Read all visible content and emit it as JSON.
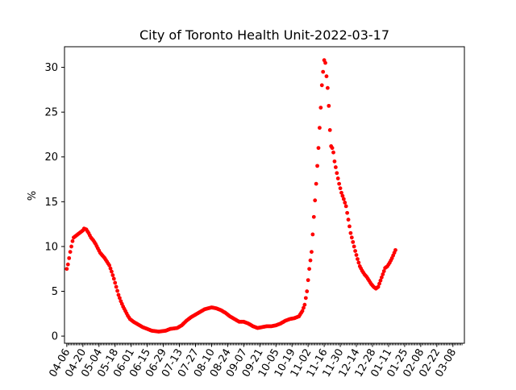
{
  "chart_data": {
    "type": "scatter",
    "title": "City of Toronto Health Unit-2022-03-17",
    "xlabel": "",
    "ylabel": "%",
    "x_start_date": "2021-04-06",
    "xlim_days": [
      -2,
      346
    ],
    "ylim": [
      -0.8,
      32.3
    ],
    "yticks": [
      0,
      5,
      10,
      15,
      20,
      25,
      30
    ],
    "xtick_labels": [
      "04-06",
      "04-20",
      "05-04",
      "05-18",
      "06-01",
      "06-15",
      "06-29",
      "07-13",
      "07-27",
      "08-10",
      "08-24",
      "09-07",
      "09-21",
      "10-05",
      "10-19",
      "11-02",
      "11-16",
      "11-30",
      "12-14",
      "12-28",
      "01-11",
      "01-25",
      "02-08",
      "02-22",
      "03-08"
    ],
    "marker_color": "#ff0000",
    "series": [
      {
        "name": "",
        "anchors": [
          [
            0,
            7.5
          ],
          [
            1,
            8.0
          ],
          [
            2,
            8.7
          ],
          [
            3,
            9.4
          ],
          [
            4,
            10.0
          ],
          [
            5,
            10.6
          ],
          [
            6,
            11.0
          ],
          [
            8,
            11.2
          ],
          [
            10,
            11.4
          ],
          [
            12,
            11.6
          ],
          [
            14,
            11.8
          ],
          [
            15,
            12.0
          ],
          [
            17,
            11.9
          ],
          [
            19,
            11.5
          ],
          [
            21,
            11.0
          ],
          [
            23,
            10.7
          ],
          [
            25,
            10.3
          ],
          [
            27,
            9.8
          ],
          [
            29,
            9.3
          ],
          [
            31,
            9.0
          ],
          [
            33,
            8.7
          ],
          [
            35,
            8.3
          ],
          [
            37,
            7.9
          ],
          [
            39,
            7.2
          ],
          [
            41,
            6.4
          ],
          [
            43,
            5.5
          ],
          [
            45,
            4.6
          ],
          [
            47,
            3.9
          ],
          [
            49,
            3.3
          ],
          [
            51,
            2.8
          ],
          [
            53,
            2.3
          ],
          [
            55,
            1.9
          ],
          [
            58,
            1.6
          ],
          [
            62,
            1.3
          ],
          [
            66,
            1.0
          ],
          [
            70,
            0.8
          ],
          [
            74,
            0.6
          ],
          [
            80,
            0.5
          ],
          [
            86,
            0.6
          ],
          [
            90,
            0.8
          ],
          [
            96,
            0.9
          ],
          [
            100,
            1.2
          ],
          [
            104,
            1.7
          ],
          [
            108,
            2.1
          ],
          [
            112,
            2.4
          ],
          [
            116,
            2.7
          ],
          [
            120,
            3.0
          ],
          [
            126,
            3.2
          ],
          [
            130,
            3.1
          ],
          [
            134,
            2.9
          ],
          [
            138,
            2.6
          ],
          [
            142,
            2.2
          ],
          [
            146,
            1.9
          ],
          [
            150,
            1.6
          ],
          [
            154,
            1.6
          ],
          [
            158,
            1.4
          ],
          [
            162,
            1.1
          ],
          [
            166,
            0.9
          ],
          [
            170,
            1.0
          ],
          [
            174,
            1.1
          ],
          [
            178,
            1.1
          ],
          [
            182,
            1.2
          ],
          [
            186,
            1.4
          ],
          [
            190,
            1.7
          ],
          [
            194,
            1.9
          ],
          [
            198,
            2.0
          ],
          [
            202,
            2.2
          ],
          [
            205,
            2.8
          ],
          [
            207,
            3.5
          ],
          [
            209,
            5.0
          ],
          [
            211,
            7.5
          ],
          [
            213,
            9.4
          ],
          [
            215,
            13.3
          ],
          [
            217,
            17.0
          ],
          [
            219,
            21.0
          ],
          [
            221,
            25.5
          ],
          [
            222,
            28.0
          ],
          [
            223,
            29.5
          ],
          [
            224,
            30.8
          ],
          [
            225,
            30.5
          ],
          [
            226,
            29.0
          ],
          [
            227,
            27.7
          ],
          [
            228,
            25.7
          ],
          [
            229,
            23.0
          ],
          [
            230,
            21.2
          ],
          [
            231,
            21.0
          ],
          [
            232,
            20.5
          ],
          [
            233,
            19.5
          ],
          [
            235,
            18.2
          ],
          [
            237,
            17.0
          ],
          [
            239,
            16.0
          ],
          [
            241,
            15.3
          ],
          [
            243,
            14.5
          ],
          [
            245,
            13.0
          ],
          [
            247,
            11.5
          ],
          [
            249,
            10.5
          ],
          [
            251,
            9.5
          ],
          [
            253,
            8.6
          ],
          [
            255,
            7.8
          ],
          [
            257,
            7.3
          ],
          [
            259,
            6.9
          ],
          [
            261,
            6.6
          ],
          [
            263,
            6.2
          ],
          [
            265,
            5.8
          ],
          [
            267,
            5.5
          ],
          [
            269,
            5.3
          ],
          [
            271,
            5.5
          ],
          [
            273,
            6.2
          ],
          [
            275,
            6.9
          ],
          [
            277,
            7.6
          ],
          [
            279,
            7.8
          ],
          [
            281,
            8.2
          ],
          [
            283,
            8.7
          ],
          [
            285,
            9.3
          ],
          [
            286,
            9.6
          ]
        ]
      }
    ]
  }
}
